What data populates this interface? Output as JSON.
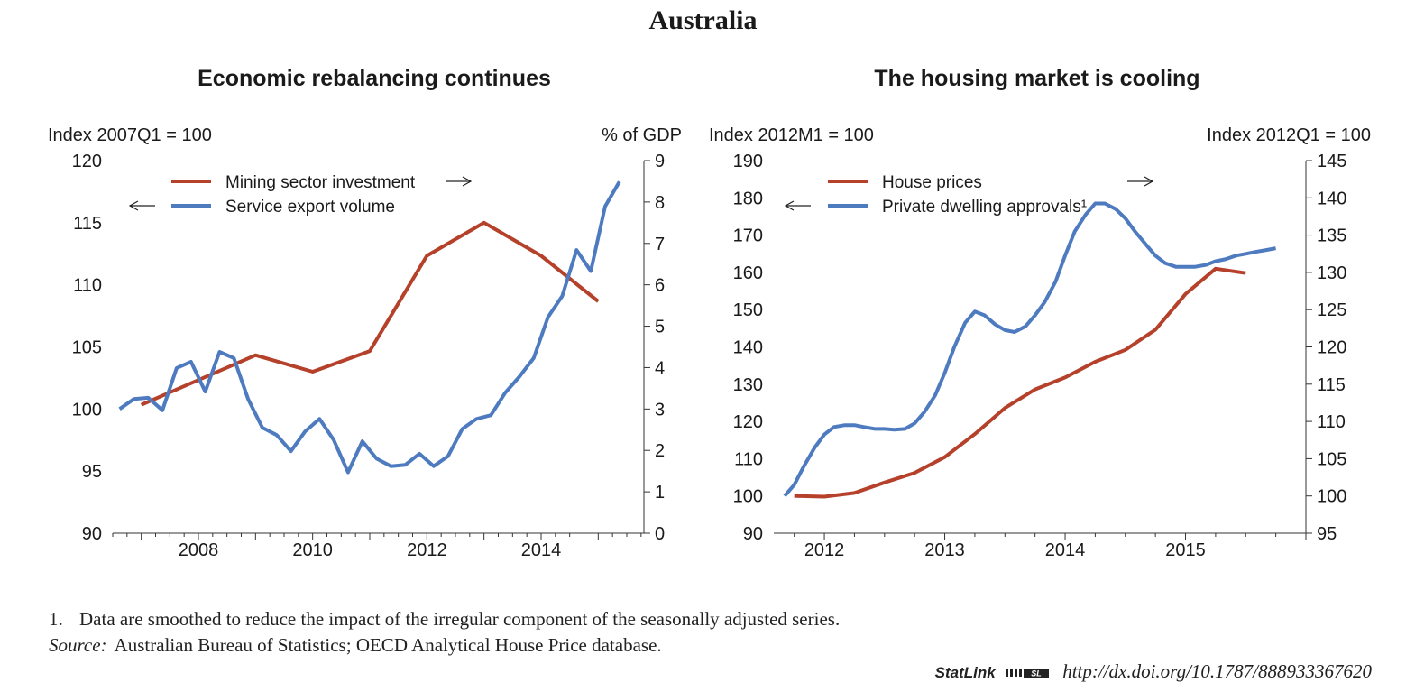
{
  "page_title": "Australia",
  "footnote": {
    "number": "1.",
    "text": "Data are smoothed to reduce the impact of the irregular component of the seasonally adjusted series."
  },
  "source": {
    "label": "Source:",
    "text": "Australian Bureau of Statistics; OECD Analytical House Price database."
  },
  "statlink": {
    "brand": "StatLink",
    "url": "http://dx.doi.org/10.1787/888933367620"
  },
  "colors": {
    "red": "#b5412b",
    "blue": "#4e7bc0",
    "axis": "#333333"
  },
  "chart_data": [
    {
      "type": "line",
      "title": "Economic rebalancing continues",
      "ylabel_left": "Index 2007Q1 = 100",
      "ylabel_right": "% of GDP",
      "xlim": [
        2006.5,
        2015.8
      ],
      "x_ticks": [
        2008,
        2010,
        2012,
        2014
      ],
      "x_tick_labels": [
        "2008",
        "2010",
        "2012",
        "2014"
      ],
      "ylim_left": [
        90,
        120
      ],
      "yticks_left": [
        90,
        95,
        100,
        105,
        110,
        115,
        120
      ],
      "ylim_right": [
        0,
        9
      ],
      "yticks_right": [
        0,
        1,
        2,
        3,
        4,
        5,
        6,
        7,
        8,
        9
      ],
      "legend": {
        "position": "top-left",
        "left_arrow": "←",
        "right_arrow": "→"
      },
      "series": [
        {
          "name": "Mining sector investment",
          "axis": "right",
          "color": "#b5412b",
          "x": [
            2007.0,
            2009.0,
            2010.0,
            2011.0,
            2012.0,
            2013.0,
            2014.0,
            2015.0
          ],
          "y": [
            3.1,
            4.3,
            3.9,
            4.4,
            6.7,
            7.5,
            6.7,
            5.6
          ]
        },
        {
          "name": "Service export volume",
          "axis": "left",
          "color": "#4e7bc0",
          "x": [
            2006.62,
            2006.87,
            2007.12,
            2007.37,
            2007.62,
            2007.87,
            2008.12,
            2008.37,
            2008.62,
            2008.87,
            2009.12,
            2009.37,
            2009.62,
            2009.87,
            2010.12,
            2010.37,
            2010.62,
            2010.87,
            2011.12,
            2011.37,
            2011.62,
            2011.87,
            2012.12,
            2012.37,
            2012.62,
            2012.87,
            2013.12,
            2013.37,
            2013.62,
            2013.87,
            2014.12,
            2014.37,
            2014.62,
            2014.87,
            2015.12,
            2015.37
          ],
          "y": [
            100.0,
            100.8,
            100.9,
            99.9,
            103.3,
            103.8,
            101.4,
            104.6,
            104.1,
            100.8,
            98.5,
            97.9,
            96.6,
            98.2,
            99.2,
            97.5,
            94.9,
            97.4,
            96.0,
            95.4,
            95.5,
            96.4,
            95.4,
            96.2,
            98.4,
            99.2,
            99.5,
            101.3,
            102.6,
            104.1,
            107.4,
            109.1,
            112.8,
            111.1,
            116.3,
            118.3
          ]
        }
      ]
    },
    {
      "type": "line",
      "title": "The housing market is cooling",
      "ylabel_left": "Index 2012M1 = 100",
      "ylabel_right": "Index 2012Q1 = 100",
      "xlim": [
        2011.58,
        2016.0
      ],
      "x_ticks": [
        2012,
        2013,
        2014,
        2015
      ],
      "x_tick_labels": [
        "2012",
        "2013",
        "2014",
        "2015"
      ],
      "ylim_left": [
        90,
        190
      ],
      "yticks_left": [
        90,
        100,
        110,
        120,
        130,
        140,
        150,
        160,
        170,
        180,
        190
      ],
      "ylim_right": [
        95,
        145
      ],
      "yticks_right": [
        95,
        100,
        105,
        110,
        115,
        120,
        125,
        130,
        135,
        140,
        145
      ],
      "legend": {
        "position": "top-left",
        "left_arrow": "←",
        "right_arrow": "→"
      },
      "series": [
        {
          "name": "House prices",
          "axis": "right",
          "color": "#b5412b",
          "x": [
            2011.75,
            2012.0,
            2012.25,
            2012.5,
            2012.75,
            2013.0,
            2013.25,
            2013.5,
            2013.75,
            2014.0,
            2014.25,
            2014.5,
            2014.75,
            2015.0,
            2015.25,
            2015.5
          ],
          "y": [
            100.0,
            99.9,
            100.4,
            101.8,
            103.1,
            105.2,
            108.3,
            111.8,
            114.3,
            115.9,
            118.0,
            119.6,
            122.3,
            127.1,
            130.5,
            129.9
          ]
        },
        {
          "name": "Private dwelling approvals¹",
          "axis": "left",
          "color": "#4e7bc0",
          "x": [
            2011.67,
            2011.75,
            2011.83,
            2011.92,
            2012.0,
            2012.08,
            2012.17,
            2012.25,
            2012.33,
            2012.42,
            2012.5,
            2012.58,
            2012.67,
            2012.75,
            2012.83,
            2012.92,
            2013.0,
            2013.08,
            2013.17,
            2013.25,
            2013.33,
            2013.42,
            2013.5,
            2013.58,
            2013.67,
            2013.75,
            2013.83,
            2013.92,
            2014.0,
            2014.08,
            2014.17,
            2014.25,
            2014.33,
            2014.42,
            2014.5,
            2014.58,
            2014.67,
            2014.75,
            2014.83,
            2014.92,
            2015.0,
            2015.08,
            2015.17,
            2015.25,
            2015.33,
            2015.42,
            2015.5,
            2015.58,
            2015.67,
            2015.75
          ],
          "y": [
            100.0,
            103.0,
            108.0,
            113.0,
            116.5,
            118.5,
            119.0,
            119.0,
            118.5,
            118.0,
            118.0,
            117.8,
            118.0,
            119.5,
            122.5,
            127.0,
            133.0,
            140.0,
            146.5,
            149.5,
            148.5,
            146.0,
            144.5,
            144.0,
            145.5,
            148.5,
            152.0,
            157.5,
            164.5,
            171.0,
            175.5,
            178.5,
            178.5,
            177.0,
            174.5,
            171.0,
            167.5,
            164.5,
            162.5,
            161.5,
            161.5,
            161.5,
            162.0,
            163.0,
            163.5,
            164.5,
            165.0,
            165.5,
            166.0,
            166.5
          ]
        }
      ]
    }
  ]
}
